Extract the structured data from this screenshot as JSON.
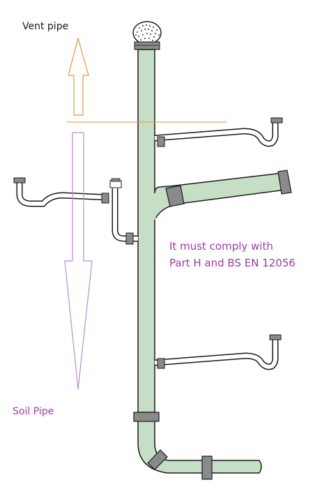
{
  "labels": {
    "vent_pipe": "Vent pipe",
    "soil_pipe": "Soil Pipe",
    "note_line1": "It must comply with",
    "note_line2": "Part H and BS EN 12056"
  },
  "colors": {
    "pipe_fill": "#c6dec6",
    "pipe_stroke": "#1a1a1a",
    "collar": "#8a8a8a",
    "vent_arrow": "#e8953a",
    "soil_arrow": "#b88ad8",
    "note_text": "#a03aa8"
  },
  "icons": {
    "cowl": "vent-cowl-icon"
  }
}
